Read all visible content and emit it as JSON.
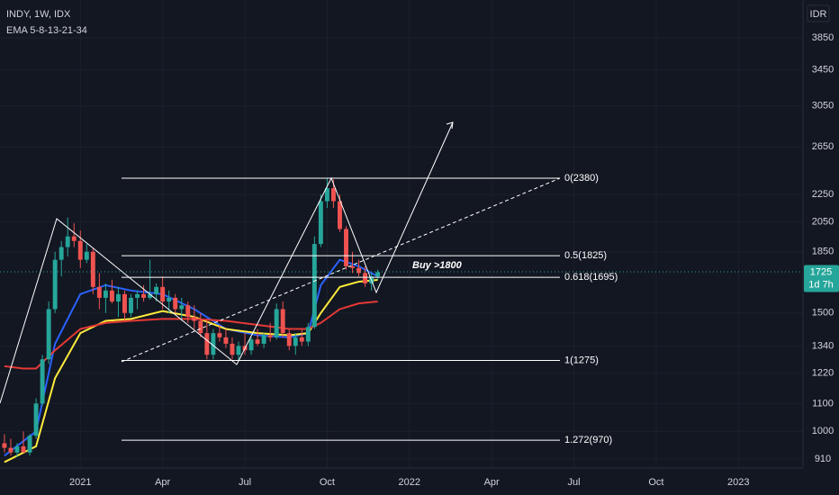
{
  "chart_data": {
    "type": "candlestick",
    "title": "INDY, 1W, IDX",
    "subtitle": "EMA 5-8-13-21-34",
    "currency": "IDR",
    "log_scale": true,
    "grid": true,
    "up_color": "#26a69a",
    "down_color": "#ef5350",
    "ylim": [
      882,
      4383
    ],
    "yticks": [
      910,
      1000,
      1100,
      1220,
      1340,
      1500,
      1850,
      2050,
      2250,
      2650,
      3050,
      3450,
      3850
    ],
    "xlim": [
      -0.7,
      126.2
    ],
    "xticks": [
      {
        "value": 12,
        "label": "2021"
      },
      {
        "value": 25,
        "label": "Apr"
      },
      {
        "value": 38,
        "label": "Jul"
      },
      {
        "value": 51,
        "label": "Oct"
      },
      {
        "value": 64,
        "label": "2022"
      },
      {
        "value": 77,
        "label": "Apr"
      },
      {
        "value": 90,
        "label": "Jul"
      },
      {
        "value": 103,
        "label": "Oct"
      },
      {
        "value": 116,
        "label": "2023"
      }
    ],
    "x": [
      0,
      1,
      2,
      3,
      4,
      5,
      6,
      7,
      8,
      9,
      10,
      11,
      12,
      13,
      14,
      15,
      16,
      17,
      18,
      19,
      20,
      21,
      22,
      23,
      24,
      25,
      26,
      27,
      28,
      29,
      30,
      31,
      32,
      33,
      34,
      35,
      36,
      37,
      38,
      39,
      40,
      41,
      42,
      43,
      44,
      45,
      46,
      47,
      48,
      49,
      50,
      51,
      52,
      53,
      54,
      55,
      56,
      57,
      58,
      59
    ],
    "open": [
      960,
      945,
      930,
      950,
      930,
      985,
      1100,
      1280,
      1520,
      1800,
      1880,
      1950,
      1920,
      1800,
      1850,
      1640,
      1580,
      1620,
      1560,
      1600,
      1500,
      1580,
      1600,
      1580,
      1600,
      1640,
      1560,
      1580,
      1520,
      1540,
      1480,
      1460,
      1400,
      1300,
      1400,
      1380,
      1350,
      1300,
      1340,
      1320,
      1370,
      1350,
      1390,
      1380,
      1520,
      1400,
      1340,
      1380,
      1360,
      1430,
      1900,
      2200,
      2300,
      2200,
      2000,
      1760,
      1750,
      1720,
      1660,
      1700
    ],
    "high": [
      990,
      975,
      960,
      1000,
      990,
      1120,
      1300,
      1560,
      1850,
      1920,
      2080,
      2040,
      1990,
      1900,
      1870,
      1720,
      1660,
      1680,
      1640,
      1620,
      1600,
      1620,
      1650,
      1800,
      1660,
      1700,
      1620,
      1600,
      1580,
      1560,
      1540,
      1500,
      1460,
      1420,
      1440,
      1420,
      1380,
      1360,
      1400,
      1380,
      1420,
      1400,
      1450,
      1550,
      1560,
      1420,
      1400,
      1420,
      1450,
      1950,
      2250,
      2380,
      2370,
      2250,
      2020,
      1850,
      1800,
      1760,
      1720,
      1740
    ],
    "low": [
      930,
      920,
      915,
      940,
      920,
      975,
      1090,
      1260,
      1500,
      1700,
      1820,
      1880,
      1750,
      1780,
      1600,
      1520,
      1500,
      1550,
      1480,
      1460,
      1480,
      1520,
      1560,
      1570,
      1560,
      1520,
      1500,
      1500,
      1460,
      1450,
      1420,
      1380,
      1280,
      1280,
      1360,
      1330,
      1280,
      1270,
      1300,
      1300,
      1340,
      1330,
      1360,
      1370,
      1380,
      1320,
      1300,
      1340,
      1340,
      1420,
      1880,
      2150,
      2150,
      1980,
      1740,
      1720,
      1700,
      1640,
      1620,
      1680
    ],
    "close": [
      945,
      930,
      950,
      930,
      985,
      1100,
      1280,
      1520,
      1800,
      1880,
      1950,
      1920,
      1800,
      1850,
      1640,
      1580,
      1620,
      1560,
      1600,
      1500,
      1580,
      1600,
      1580,
      1600,
      1640,
      1560,
      1580,
      1520,
      1540,
      1480,
      1460,
      1400,
      1300,
      1400,
      1380,
      1350,
      1300,
      1340,
      1320,
      1370,
      1350,
      1390,
      1380,
      1520,
      1400,
      1340,
      1380,
      1360,
      1430,
      1900,
      2200,
      2300,
      2200,
      2000,
      1760,
      1750,
      1720,
      1660,
      1700,
      1725
    ],
    "ema": [
      {
        "color": "#2962ff",
        "x": [
          0,
          5,
          8,
          12,
          16,
          20,
          25,
          30,
          35,
          40,
          45,
          48,
          50,
          53,
          56,
          59
        ],
        "values": [
          920,
          1000,
          1350,
          1600,
          1650,
          1620,
          1600,
          1520,
          1420,
          1390,
          1380,
          1400,
          1650,
          1800,
          1760,
          1700
        ]
      },
      {
        "color": "#ffeb3b",
        "x": [
          0,
          5,
          8,
          12,
          16,
          20,
          25,
          30,
          35,
          40,
          45,
          48,
          50,
          53,
          56,
          59
        ],
        "values": [
          900,
          950,
          1200,
          1400,
          1460,
          1470,
          1510,
          1480,
          1420,
          1400,
          1390,
          1400,
          1500,
          1640,
          1670,
          1680
        ]
      },
      {
        "color": "#e53935",
        "x": [
          0,
          3,
          5,
          8,
          12,
          16,
          20,
          25,
          30,
          35,
          40,
          45,
          48,
          50,
          53,
          56,
          59
        ],
        "values": [
          1250,
          1240,
          1240,
          1320,
          1420,
          1450,
          1460,
          1470,
          1470,
          1460,
          1440,
          1420,
          1420,
          1450,
          1520,
          1550,
          1560
        ]
      }
    ],
    "fib_levels": [
      {
        "label": "0(2380)",
        "price": 2380
      },
      {
        "label": "0.5(1825)",
        "price": 1825
      },
      {
        "label": "0.618(1695)",
        "price": 1695
      },
      {
        "label": "1(1275)",
        "price": 1275
      },
      {
        "label": "1.272(970)",
        "price": 970
      }
    ],
    "annotation": "Buy >1800",
    "last_price": 1725,
    "countdown": "1d 7h"
  }
}
